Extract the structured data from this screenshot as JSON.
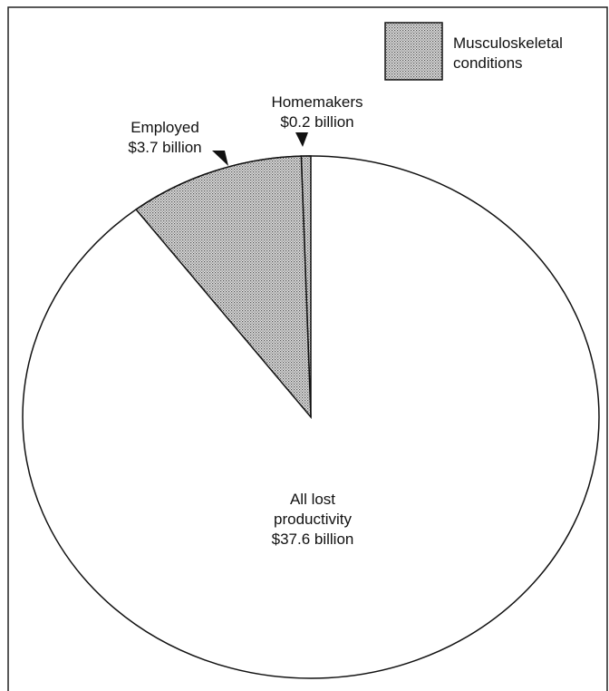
{
  "chart_data": {
    "type": "pie",
    "legend": "Musculoskeletal conditions",
    "categories": [
      "Homemakers",
      "Employed"
    ],
    "values": [
      0.2,
      3.7
    ],
    "value_labels": [
      "$0.2 billion",
      "$3.7 billion"
    ],
    "total_name": "All lost productivity",
    "total": 37.6,
    "total_label": "$37.6 billion"
  }
}
